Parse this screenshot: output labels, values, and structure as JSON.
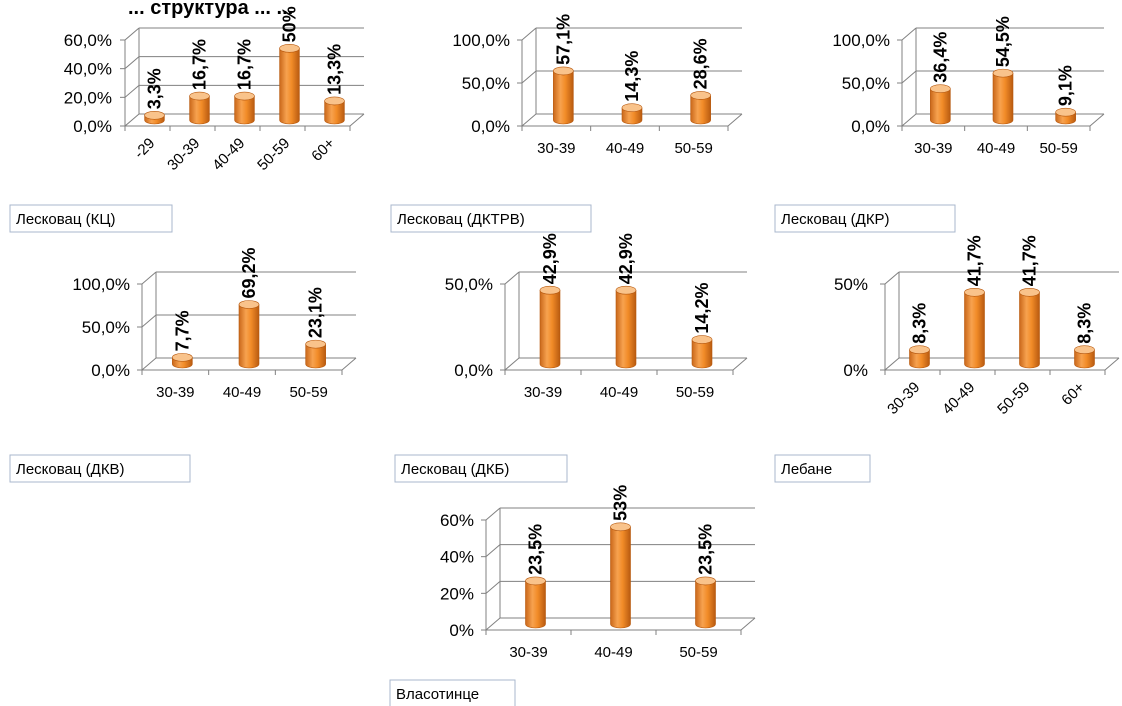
{
  "title": "... структура ... ...",
  "colors": {
    "bar_light": "#f9c38b",
    "bar_main": "#f28c28",
    "bar_dark": "#b85a10",
    "axis": "#808080",
    "name_box_border": "#a9b7cc"
  },
  "chart_data": [
    {
      "type": "bar",
      "name": "Лесковац (КЦ)",
      "categories": [
        "-29",
        "30-39",
        "40-49",
        "50-59",
        "60+"
      ],
      "values": [
        3.3,
        16.7,
        16.7,
        50,
        13.3
      ],
      "data_labels": [
        "3,3%",
        "16,7%",
        "16,7%",
        "50%",
        "13,3%"
      ],
      "yticks": [
        "0,0%",
        "20,0%",
        "40,0%",
        "60,0%"
      ],
      "ylim": [
        0,
        60
      ],
      "rotated_categories": true
    },
    {
      "type": "bar",
      "name": "Лесковац (ДКТРВ)",
      "categories": [
        "30-39",
        "40-49",
        "50-59"
      ],
      "values": [
        57.1,
        14.3,
        28.6
      ],
      "data_labels": [
        "57,1%",
        "14,3%",
        "28,6%"
      ],
      "yticks": [
        "0,0%",
        "50,0%",
        "100,0%"
      ],
      "ylim": [
        0,
        100
      ],
      "rotated_categories": false
    },
    {
      "type": "bar",
      "name": "Лесковац (ДКР)",
      "categories": [
        "30-39",
        "40-49",
        "50-59"
      ],
      "values": [
        36.4,
        54.5,
        9.1
      ],
      "data_labels": [
        "36,4%",
        "54,5%",
        "9,1%"
      ],
      "yticks": [
        "0,0%",
        "50,0%",
        "100,0%"
      ],
      "ylim": [
        0,
        100
      ],
      "rotated_categories": false
    },
    {
      "type": "bar",
      "name": "Лесковац (ДКВ)",
      "categories": [
        "30-39",
        "40-49",
        "50-59"
      ],
      "values": [
        7.7,
        69.2,
        23.1
      ],
      "data_labels": [
        "7,7%",
        "69,2%",
        "23,1%"
      ],
      "yticks": [
        "0,0%",
        "50,0%",
        "100,0%"
      ],
      "ylim": [
        0,
        100
      ],
      "rotated_categories": false
    },
    {
      "type": "bar",
      "name": "Лесковац (ДКБ)",
      "categories": [
        "30-39",
        "40-49",
        "50-59"
      ],
      "values": [
        42.9,
        42.9,
        14.2
      ],
      "data_labels": [
        "42,9%",
        "42,9%",
        "14,2%"
      ],
      "yticks": [
        "0,0%",
        "50,0%"
      ],
      "ylim": [
        0,
        50
      ],
      "rotated_categories": false
    },
    {
      "type": "bar",
      "name": "Лебане",
      "categories": [
        "30-39",
        "40-49",
        "50-59",
        "60+"
      ],
      "values": [
        8.3,
        41.7,
        41.7,
        8.3
      ],
      "data_labels": [
        "8,3%",
        "41,7%",
        "41,7%",
        "8,3%"
      ],
      "yticks": [
        "0%",
        "50%"
      ],
      "ylim": [
        0,
        50
      ],
      "rotated_categories": true
    },
    {
      "type": "bar",
      "name": "Власотинце",
      "categories": [
        "30-39",
        "40-49",
        "50-59"
      ],
      "values": [
        23.5,
        53,
        23.5
      ],
      "data_labels": [
        "23,5%",
        "53%",
        "23,5%"
      ],
      "yticks": [
        "0%",
        "20%",
        "40%",
        "60%"
      ],
      "ylim": [
        0,
        60
      ],
      "rotated_categories": false
    }
  ]
}
